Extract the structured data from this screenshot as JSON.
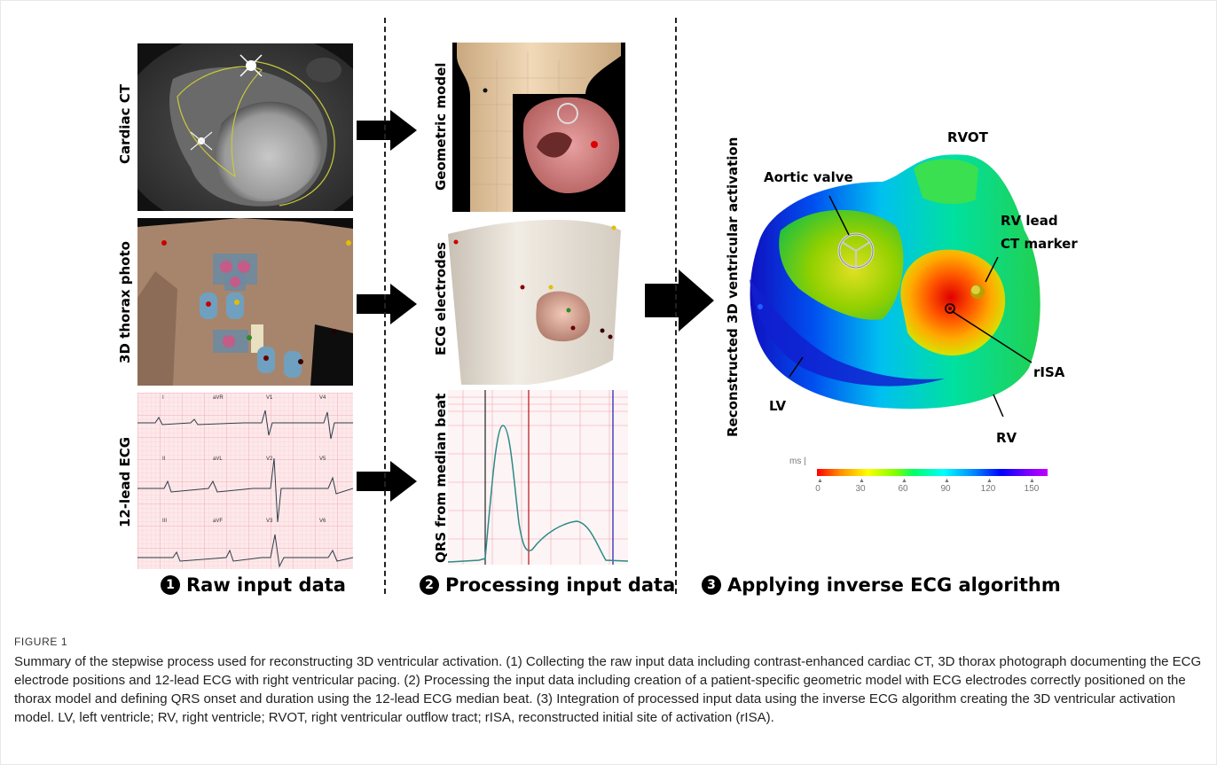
{
  "panels": {
    "raw": {
      "ct_label": "Cardiac CT",
      "photo_label": "3D thorax photo",
      "ecg_label": "12-lead ECG"
    },
    "processing": {
      "geo_label": "Geometric model",
      "electrodes_label": "ECG electrodes",
      "qrs_label": "QRS from median beat"
    },
    "result": {
      "axis_label": "Reconstructed 3D ventricular activation"
    }
  },
  "ecg_leads": [
    "I",
    "aVR",
    "V1",
    "V4",
    "II",
    "aVL",
    "V2",
    "V5",
    "III",
    "aVF",
    "V3",
    "V6"
  ],
  "steps": [
    {
      "number": "1",
      "title": "Raw input data"
    },
    {
      "number": "2",
      "title": "Processing input data"
    },
    {
      "number": "3",
      "title": "Applying inverse ECG algorithm"
    }
  ],
  "heart_labels": {
    "rvot": "RVOT",
    "aortic_valve": "Aortic valve",
    "rv_lead": "RV lead",
    "ct_marker": "CT marker",
    "risa": "rISA",
    "lv": "LV",
    "rv": "RV"
  },
  "color_scale": {
    "unit": "ms |",
    "ticks": [
      "0",
      "30",
      "60",
      "90",
      "120",
      "150"
    ],
    "colors": [
      "#ff0000",
      "#ffff00",
      "#00ff66",
      "#00ffff",
      "#0000ff",
      "#c000ff"
    ]
  },
  "figure": {
    "label": "FIGURE 1",
    "caption": "Summary of the stepwise process used for reconstructing 3D ventricular activation. (1) Collecting the raw input data including contrast-enhanced cardiac CT, 3D thorax photograph documenting the ECG electrode positions and 12-lead ECG with right ventricular pacing. (2) Processing the input data including creation of a patient-specific geometric model with ECG electrodes correctly positioned on the thorax model and defining QRS onset and duration using the 12-lead ECG median beat. (3) Integration of processed input data using the inverse ECG algorithm creating the 3D ventricular activation model. LV, left ventricle; RV, right ventricle; RVOT, right ventricular outflow tract; rISA, reconstructed initial site of activation (rISA)."
  }
}
